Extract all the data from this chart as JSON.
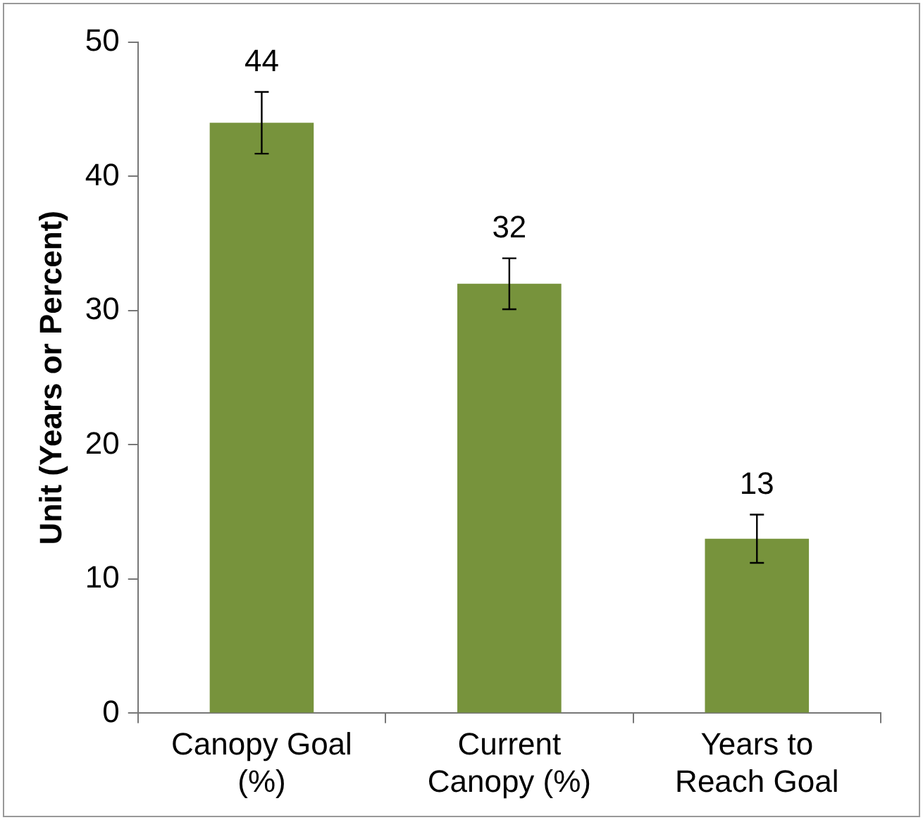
{
  "chart_data": {
    "type": "bar",
    "ylabel": "Unit (Years or Percent)",
    "categories": [
      "Canopy Goal (%)",
      "Current Canopy (%)",
      "Years to Reach Goal"
    ],
    "values": [
      44,
      32,
      13
    ],
    "errors": [
      2.3,
      1.9,
      1.8
    ],
    "color": "#77933c",
    "ylim": [
      0,
      50
    ],
    "yticks": [
      0,
      10,
      20,
      30,
      40,
      50
    ],
    "grid": false,
    "legend": false,
    "data_labels": true
  }
}
